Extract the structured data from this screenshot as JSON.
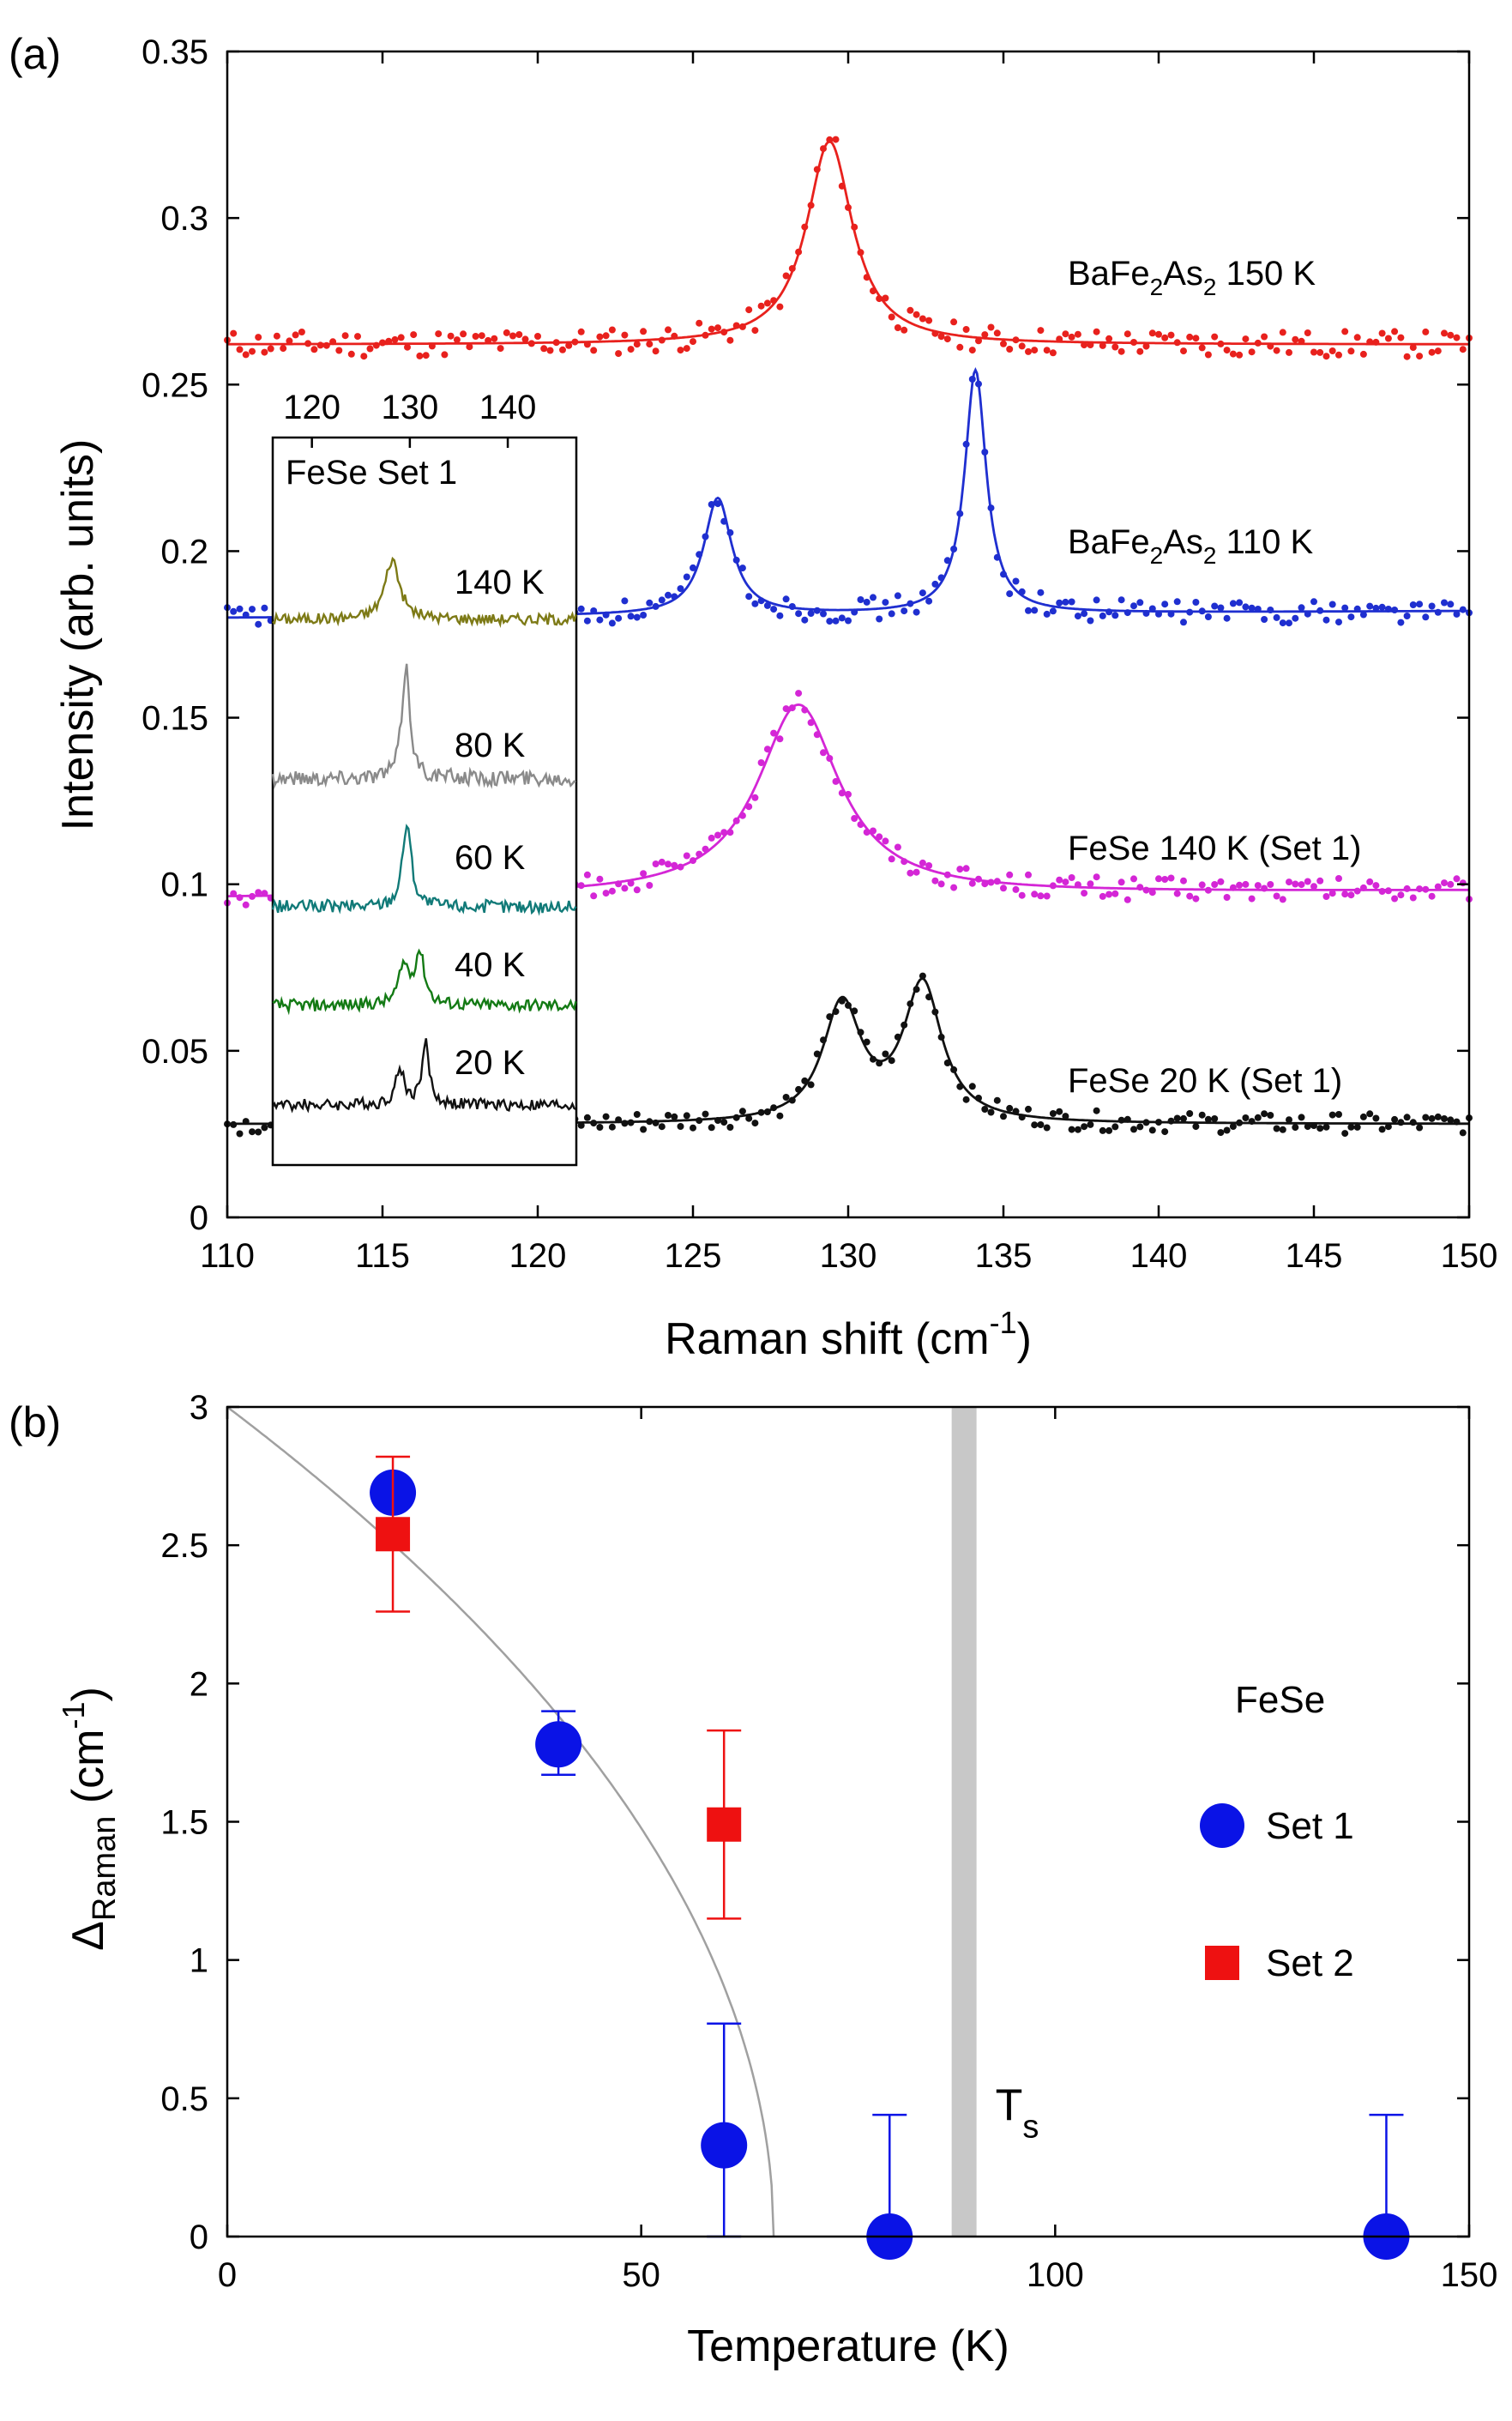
{
  "chart_data": [
    {
      "panel": "(a)",
      "type": "scatter",
      "xlabel": "Raman shift (cm-1)",
      "ylabel": "Intensity (arb. units)",
      "xlim": [
        110,
        150
      ],
      "ylim": [
        0,
        0.35
      ],
      "xticks": [
        110,
        115,
        120,
        125,
        130,
        135,
        140,
        145,
        150
      ],
      "yticks": [
        0,
        0.05,
        0.1,
        0.15,
        0.2,
        0.25,
        0.3,
        0.35
      ],
      "yticklabels": [
        "0",
        "0.05",
        "0.1",
        "0.15",
        "0.2",
        "0.25",
        "0.3",
        "0.35"
      ],
      "series": [
        {
          "name": "BaFe2As2 150 K",
          "label_main": "BaFe",
          "label_sub1": "2",
          "label_mid": "As",
          "label_sub2": "2",
          "label_tail": " 150 K",
          "color": "#e8211d",
          "baseline": 0.262,
          "slope": 0,
          "peaks": [
            {
              "x0": 129.4,
              "amp": 0.061,
              "gamma": 0.9
            }
          ],
          "noise": 0.004
        },
        {
          "name": "BaFe2As2 110 K",
          "label_main": "BaFe",
          "label_sub1": "2",
          "label_mid": "As",
          "label_sub2": "2",
          "label_tail": " 110 K",
          "color": "#1f2fd0",
          "baseline": 0.18,
          "slope": 5e-05,
          "peaks": [
            {
              "x0": 125.8,
              "amp": 0.035,
              "gamma": 0.55
            },
            {
              "x0": 134.1,
              "amp": 0.073,
              "gamma": 0.42
            }
          ],
          "noise": 0.0035
        },
        {
          "name": "FeSe 140 K (Set 1)",
          "label": "FeSe 140 K (Set 1)",
          "color": "#d426d6",
          "baseline": 0.096,
          "slope": 5e-05,
          "peaks": [
            {
              "x0": 128.4,
              "amp": 0.057,
              "gamma": 1.6
            }
          ],
          "noise": 0.0035
        },
        {
          "name": "FeSe 20 K (Set 1)",
          "label": "FeSe 20 K (Set 1)",
          "color": "#111111",
          "baseline": 0.028,
          "slope": 0,
          "peaks": [
            {
              "x0": 129.8,
              "amp": 0.035,
              "gamma": 0.75
            },
            {
              "x0": 132.4,
              "amp": 0.041,
              "gamma": 0.75
            }
          ],
          "noise": 0.003
        }
      ],
      "inset": {
        "title": "FeSe Set 1",
        "xticks": [
          120,
          130,
          140
        ],
        "xlim": [
          116,
          147
        ],
        "series": [
          {
            "name": "140 K",
            "label": "140 K",
            "color": "#7d7a16",
            "peaks": [
              {
                "x0": 128.2,
                "amp": 1.0,
                "gamma": 0.9
              }
            ]
          },
          {
            "name": "80 K",
            "label": "80 K",
            "color": "#8a8a8a",
            "peaks": [
              {
                "x0": 129.6,
                "amp": 1.3,
                "gamma": 0.5
              }
            ]
          },
          {
            "name": "60 K",
            "label": "60 K",
            "color": "#117a78",
            "peaks": [
              {
                "x0": 129.7,
                "amp": 1.15,
                "gamma": 0.55
              }
            ]
          },
          {
            "name": "40 K",
            "label": "40 K",
            "color": "#137a14",
            "peaks": [
              {
                "x0": 129.4,
                "amp": 0.55,
                "gamma": 0.6
              },
              {
                "x0": 131.0,
                "amp": 0.75,
                "gamma": 0.6
              }
            ]
          },
          {
            "name": "20 K",
            "label": "20 K",
            "color": "#111111",
            "peaks": [
              {
                "x0": 129.0,
                "amp": 0.55,
                "gamma": 0.55
              },
              {
                "x0": 131.6,
                "amp": 0.95,
                "gamma": 0.45
              }
            ]
          }
        ]
      }
    },
    {
      "panel": "(b)",
      "type": "scatter",
      "xlabel": "Temperature (K)",
      "ylabel": "ΔRaman (cm-1)",
      "xlim": [
        0,
        150
      ],
      "ylim": [
        0,
        3
      ],
      "xticks": [
        0,
        50,
        100,
        150
      ],
      "yticks": [
        0,
        0.5,
        1,
        1.5,
        2,
        2.5,
        3
      ],
      "yticklabels": [
        "0",
        "0.5",
        "1",
        "1.5",
        "2",
        "2.5",
        "3"
      ],
      "legend_title": "FeSe",
      "series": [
        {
          "name": "Set 1",
          "color": "#0a13e6",
          "marker": "circle",
          "points": [
            {
              "x": 20,
              "y": 2.69,
              "err_up": 0.05,
              "err_down": 0.05
            },
            {
              "x": 40,
              "y": 1.78,
              "err_up": 0.12,
              "err_down": 0.11
            },
            {
              "x": 60,
              "y": 0.33,
              "err_up": 0.44,
              "err_down": 0.33
            },
            {
              "x": 80,
              "y": 0.0,
              "err_up": 0.44,
              "err_down": 0
            },
            {
              "x": 140,
              "y": 0.0,
              "err_up": 0.44,
              "err_down": 0
            }
          ]
        },
        {
          "name": "Set 2",
          "color": "#ee1111",
          "marker": "square",
          "points": [
            {
              "x": 20,
              "y": 2.54,
              "err_up": 0.28,
              "err_down": 0.28
            },
            {
              "x": 60,
              "y": 1.49,
              "err_up": 0.34,
              "err_down": 0.34
            }
          ]
        }
      ],
      "fit": {
        "type": "power-law",
        "A": 3.0,
        "Tc": 66,
        "exponent": 0.5,
        "color": "#a0a0a0"
      },
      "band": {
        "x0": 87.5,
        "x1": 90.5,
        "color": "#c8c8c8",
        "label": "T",
        "label_sub": "s"
      }
    }
  ]
}
